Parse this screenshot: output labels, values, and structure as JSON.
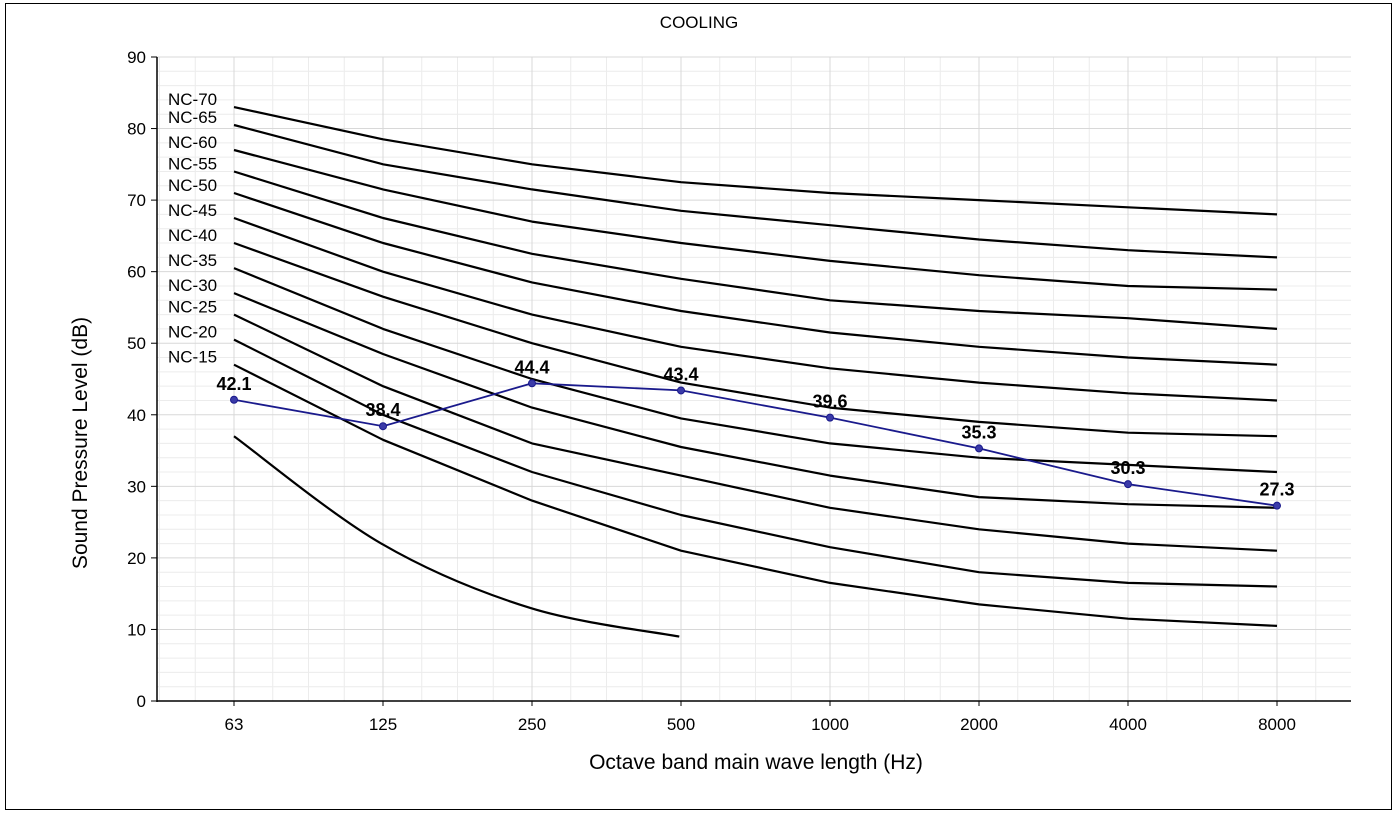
{
  "chart_data": {
    "type": "line",
    "title": "COOLING",
    "xlabel": "Octave band main wave length (Hz)",
    "ylabel": "Sound Pressure  Level (dB)",
    "categories": [
      "63",
      "125",
      "250",
      "500",
      "1000",
      "2000",
      "4000",
      "8000"
    ],
    "ylim": [
      0,
      90
    ],
    "yticks": [
      0,
      10,
      20,
      30,
      40,
      50,
      60,
      70,
      80,
      90
    ],
    "grid": true,
    "x_scale": "log",
    "curves": [
      {
        "name": "NC-70",
        "values": [
          83,
          78.5,
          75,
          72.5,
          71,
          70,
          69,
          68
        ]
      },
      {
        "name": "NC-65",
        "values": [
          80.5,
          75,
          71.5,
          68.5,
          66.5,
          64.5,
          63,
          62
        ]
      },
      {
        "name": "NC-60",
        "values": [
          77,
          71.5,
          67,
          64,
          61.5,
          59.5,
          58,
          57.5
        ]
      },
      {
        "name": "NC-55",
        "values": [
          74,
          67.5,
          62.5,
          59,
          56,
          54.5,
          53.5,
          52
        ]
      },
      {
        "name": "NC-50",
        "values": [
          71,
          64,
          58.5,
          54.5,
          51.5,
          49.5,
          48,
          47
        ]
      },
      {
        "name": "NC-45",
        "values": [
          67.5,
          60,
          54,
          49.5,
          46.5,
          44.5,
          43,
          42
        ]
      },
      {
        "name": "NC-40",
        "values": [
          64,
          56.5,
          50,
          44.5,
          41,
          39,
          37.5,
          37
        ]
      },
      {
        "name": "NC-35",
        "values": [
          60.5,
          52,
          45,
          39.5,
          36,
          34,
          33,
          32
        ]
      },
      {
        "name": "NC-30",
        "values": [
          57,
          48.5,
          41,
          35.5,
          31.5,
          28.5,
          27.5,
          27
        ]
      },
      {
        "name": "NC-25",
        "values": [
          54,
          44,
          36,
          31.5,
          27,
          24,
          22,
          21
        ]
      },
      {
        "name": "NC-20",
        "values": [
          50.5,
          40,
          32,
          26,
          21.5,
          18,
          16.5,
          16
        ]
      },
      {
        "name": "NC-15",
        "values": [
          47,
          36.5,
          28,
          21,
          16.5,
          13.5,
          11.5,
          10.5
        ]
      }
    ],
    "threshold_curve": {
      "x": [
        63,
        125,
        250,
        500
      ],
      "values": [
        37,
        22,
        13,
        9
      ]
    },
    "series": [
      {
        "name": "",
        "color": "#1a1a8c",
        "values": [
          42.1,
          38.4,
          44.4,
          43.4,
          39.6,
          35.3,
          30.3,
          27.3
        ]
      }
    ]
  }
}
